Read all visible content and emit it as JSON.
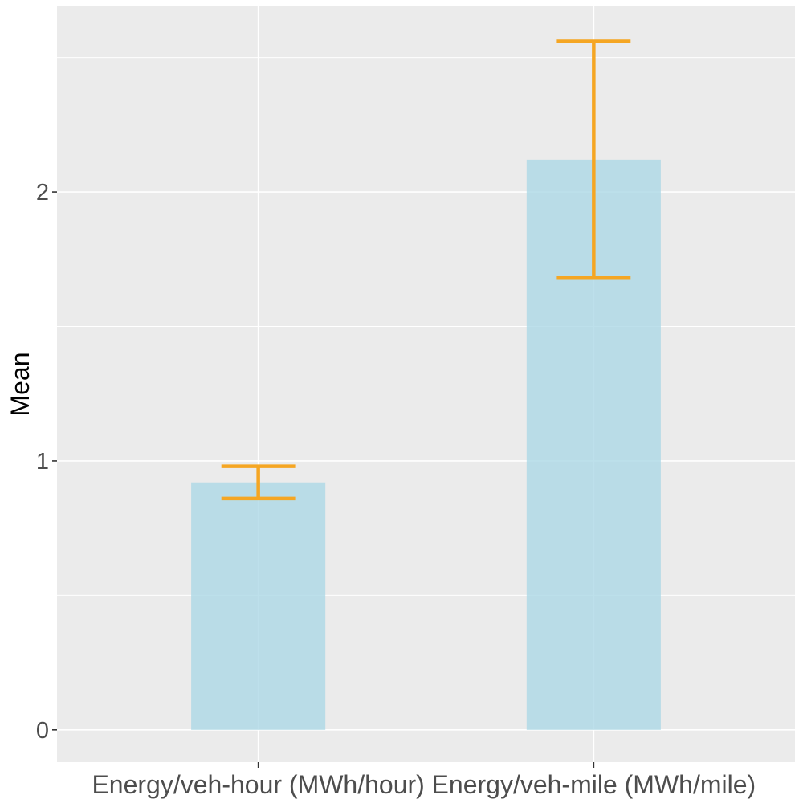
{
  "chart_data": {
    "type": "bar",
    "title": "",
    "xlabel": "",
    "ylabel": "Mean",
    "categories": [
      "Energy/veh-hour (MWh/hour)",
      "Energy/veh-mile (MWh/mile)"
    ],
    "values": [
      0.92,
      2.12
    ],
    "error_bars": [
      {
        "lower": 0.86,
        "upper": 0.98
      },
      {
        "lower": 1.68,
        "upper": 2.56
      }
    ],
    "ylim": [
      -0.12,
      2.69
    ],
    "yticks": [
      0,
      1,
      2
    ],
    "ytick_labels": [
      "0",
      "1",
      "2"
    ],
    "grid": true,
    "legend": "none",
    "colors": {
      "panel": "#EBEBEB",
      "grid": "#FFFFFF",
      "bar": "#ADD8E6",
      "error_bar": "#F5A623",
      "tick": "#333333"
    }
  }
}
